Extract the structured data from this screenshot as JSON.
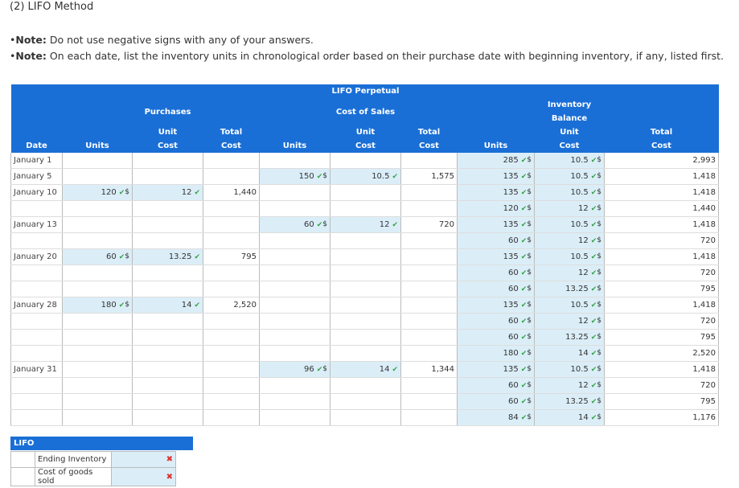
{
  "title": "(2) LIFO Method",
  "notes": [
    {
      "label": "Note:",
      "text": " Do not use negative signs with any of your answers."
    },
    {
      "label": "Note:",
      "text": " On each date, list the inventory units in chronological order based on their purchase date with beginning inventory, if any, listed first."
    }
  ],
  "headers": {
    "date": "Date",
    "purchases": "Purchases",
    "lifo_top": "LIFO Perpetual",
    "cost_of_sales": "Cost of Sales",
    "inventory_balance": "Inventory Balance",
    "units": "Units",
    "unit": "Unit",
    "cost": "Cost",
    "total": "Total"
  },
  "check": "✔",
  "dollar": "$",
  "dates": [
    "January 1",
    "January 5",
    "January 10",
    "January 13",
    "January 20",
    "January 28",
    "January 31"
  ],
  "rows": [
    {
      "date": "January 1",
      "g": 1,
      "pu": "",
      "pc": "",
      "pt": "",
      "su": "",
      "sc": "",
      "st": "",
      "bu": "285",
      "bc": "10.5",
      "bt": "2,993"
    },
    {
      "date": "January 5",
      "g": 1,
      "pu": "",
      "pc": "",
      "pt": "",
      "su": "150",
      "sc": "10.5",
      "st": "1,575",
      "bu": "135",
      "bc": "10.5",
      "bt": "1,418"
    },
    {
      "date": "January 10",
      "g": 1,
      "pu": "120",
      "pc": "12",
      "pt": "1,440",
      "su": "",
      "sc": "",
      "st": "",
      "bu": "135",
      "bc": "10.5",
      "bt": "1,418"
    },
    {
      "date": "",
      "g": 0,
      "pu": "",
      "pc": "",
      "pt": "",
      "su": "",
      "sc": "",
      "st": "",
      "bu": "120",
      "bc": "12",
      "bt": "1,440"
    },
    {
      "date": "January 13",
      "g": 1,
      "pu": "",
      "pc": "",
      "pt": "",
      "su": "60",
      "sc": "12",
      "st": "720",
      "bu": "135",
      "bc": "10.5",
      "bt": "1,418"
    },
    {
      "date": "",
      "g": 0,
      "pu": "",
      "pc": "",
      "pt": "",
      "su": "",
      "sc": "",
      "st": "",
      "bu": "60",
      "bc": "12",
      "bt": "720"
    },
    {
      "date": "January 20",
      "g": 1,
      "pu": "60",
      "pc": "13.25",
      "pt": "795",
      "su": "",
      "sc": "",
      "st": "",
      "bu": "135",
      "bc": "10.5",
      "bt": "1,418"
    },
    {
      "date": "",
      "g": 0,
      "pu": "",
      "pc": "",
      "pt": "",
      "su": "",
      "sc": "",
      "st": "",
      "bu": "60",
      "bc": "12",
      "bt": "720"
    },
    {
      "date": "",
      "g": 0,
      "pu": "",
      "pc": "",
      "pt": "",
      "su": "",
      "sc": "",
      "st": "",
      "bu": "60",
      "bc": "13.25",
      "bt": "795"
    },
    {
      "date": "January 28",
      "g": 1,
      "pu": "180",
      "pc": "14",
      "pt": "2,520",
      "su": "",
      "sc": "",
      "st": "",
      "bu": "135",
      "bc": "10.5",
      "bt": "1,418"
    },
    {
      "date": "",
      "g": 0,
      "pu": "",
      "pc": "",
      "pt": "",
      "su": "",
      "sc": "",
      "st": "",
      "bu": "60",
      "bc": "12",
      "bt": "720"
    },
    {
      "date": "",
      "g": 0,
      "pu": "",
      "pc": "",
      "pt": "",
      "su": "",
      "sc": "",
      "st": "",
      "bu": "60",
      "bc": "13.25",
      "bt": "795"
    },
    {
      "date": "",
      "g": 0,
      "pu": "",
      "pc": "",
      "pt": "",
      "su": "",
      "sc": "",
      "st": "",
      "bu": "180",
      "bc": "14",
      "bt": "2,520"
    },
    {
      "date": "January 31",
      "g": 1,
      "pu": "",
      "pc": "",
      "pt": "",
      "su": "96",
      "sc": "14",
      "st": "1,344",
      "bu": "135",
      "bc": "10.5",
      "bt": "1,418"
    },
    {
      "date": "",
      "g": 0,
      "pu": "",
      "pc": "",
      "pt": "",
      "su": "",
      "sc": "",
      "st": "",
      "bu": "60",
      "bc": "12",
      "bt": "720"
    },
    {
      "date": "",
      "g": 0,
      "pu": "",
      "pc": "",
      "pt": "",
      "su": "",
      "sc": "",
      "st": "",
      "bu": "60",
      "bc": "13.25",
      "bt": "795"
    },
    {
      "date": "",
      "g": 0,
      "pu": "",
      "pc": "",
      "pt": "",
      "su": "",
      "sc": "",
      "st": "",
      "bu": "84",
      "bc": "14",
      "bt": "1,176"
    }
  ],
  "lifo_summary": {
    "header": "LIFO",
    "items": [
      {
        "label": "Ending Inventory",
        "mark": "✖"
      },
      {
        "label": "Cost of goods sold",
        "mark": "✖"
      }
    ]
  },
  "colors": {
    "header_bg": "#1a6fd6",
    "input_bg": "#dbeef8",
    "check": "#3aa34a",
    "cross": "#d33333"
  }
}
